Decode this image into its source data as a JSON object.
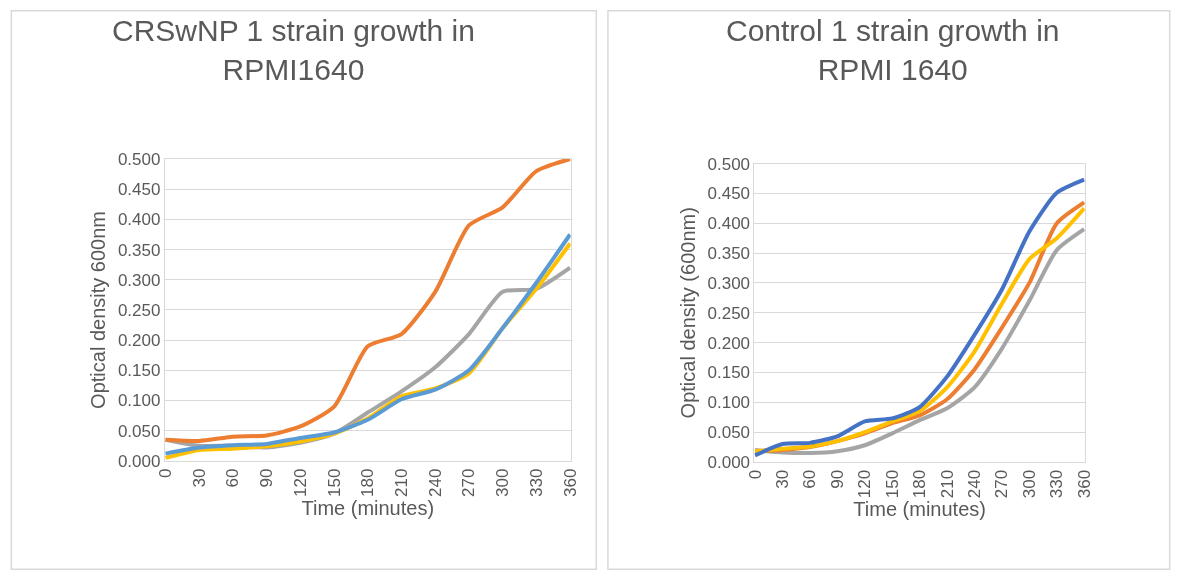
{
  "chart_data": [
    {
      "type": "line",
      "title": "CRSwNP 1 strain growth in\nRPMI1640",
      "xlabel": "Time (minutes)",
      "ylabel": "Optical density 600nm",
      "categories": [
        "0",
        "30",
        "60",
        "90",
        "120",
        "150",
        "180",
        "210",
        "240",
        "270",
        "300",
        "330",
        "360"
      ],
      "ylim": [
        0,
        0.5
      ],
      "yticks": [
        {
          "value": 0,
          "label": "0.000"
        },
        {
          "value": 0.05,
          "label": "0.050"
        },
        {
          "value": 0.1,
          "label": "0.100"
        },
        {
          "value": 0.15,
          "label": "0.150"
        },
        {
          "value": 0.2,
          "label": "0.200"
        },
        {
          "value": 0.25,
          "label": "0.250"
        },
        {
          "value": 0.3,
          "label": "0.300"
        },
        {
          "value": 0.35,
          "label": "0.350"
        },
        {
          "value": 0.4,
          "label": "0.400"
        },
        {
          "value": 0.45,
          "label": "0.450"
        },
        {
          "value": 0.5,
          "label": "0.500"
        }
      ],
      "grid": "y",
      "line_style": "solid",
      "series": [
        {
          "color": "#a5a5a5",
          "values": [
            0.035,
            0.025,
            0.025,
            0.022,
            0.03,
            0.045,
            0.08,
            0.115,
            0.155,
            0.21,
            0.28,
            0.285,
            0.32
          ]
        },
        {
          "color": "#ed7d31",
          "values": [
            0.035,
            0.033,
            0.04,
            0.042,
            0.057,
            0.09,
            0.19,
            0.21,
            0.28,
            0.39,
            0.42,
            0.48,
            0.5
          ]
        },
        {
          "color": "#ffc000",
          "values": [
            0.005,
            0.018,
            0.02,
            0.024,
            0.032,
            0.045,
            0.07,
            0.107,
            0.12,
            0.145,
            0.22,
            0.285,
            0.36
          ]
        },
        {
          "color": "#5b9bd5",
          "values": [
            0.012,
            0.022,
            0.026,
            0.028,
            0.038,
            0.047,
            0.068,
            0.102,
            0.118,
            0.15,
            0.22,
            0.295,
            0.375
          ]
        }
      ]
    },
    {
      "type": "line",
      "title": "Control 1 strain growth in\nRPMI 1640",
      "xlabel": "Time (minutes)",
      "ylabel": "Optical density (600nm)",
      "categories": [
        "0",
        "30",
        "60",
        "90",
        "120",
        "150",
        "180",
        "210",
        "240",
        "270",
        "300",
        "330",
        "360"
      ],
      "ylim": [
        0,
        0.5
      ],
      "yticks": [
        {
          "value": 0,
          "label": "0.000"
        },
        {
          "value": 0.05,
          "label": "0.050"
        },
        {
          "value": 0.1,
          "label": "0.100"
        },
        {
          "value": 0.15,
          "label": "0.150"
        },
        {
          "value": 0.2,
          "label": "0.200"
        },
        {
          "value": 0.25,
          "label": "0.250"
        },
        {
          "value": 0.3,
          "label": "0.300"
        },
        {
          "value": 0.35,
          "label": "0.350"
        },
        {
          "value": 0.4,
          "label": "0.400"
        },
        {
          "value": 0.45,
          "label": "0.450"
        },
        {
          "value": 0.5,
          "label": "0.500"
        }
      ],
      "grid": "y",
      "line_style": "solid",
      "series": [
        {
          "color": "#a5a5a5",
          "values": [
            0.02,
            0.016,
            0.015,
            0.018,
            0.028,
            0.048,
            0.07,
            0.09,
            0.125,
            0.19,
            0.27,
            0.355,
            0.39
          ]
        },
        {
          "color": "#ed7d31",
          "values": [
            0.018,
            0.02,
            0.025,
            0.035,
            0.048,
            0.065,
            0.078,
            0.105,
            0.155,
            0.225,
            0.3,
            0.4,
            0.435
          ]
        },
        {
          "color": "#ffc000",
          "values": [
            0.018,
            0.022,
            0.026,
            0.035,
            0.05,
            0.068,
            0.085,
            0.125,
            0.185,
            0.265,
            0.34,
            0.375,
            0.425
          ]
        },
        {
          "color": "#4472c4",
          "values": [
            0.011,
            0.03,
            0.032,
            0.043,
            0.068,
            0.073,
            0.092,
            0.143,
            0.213,
            0.289,
            0.386,
            0.451,
            0.473
          ]
        }
      ]
    }
  ]
}
